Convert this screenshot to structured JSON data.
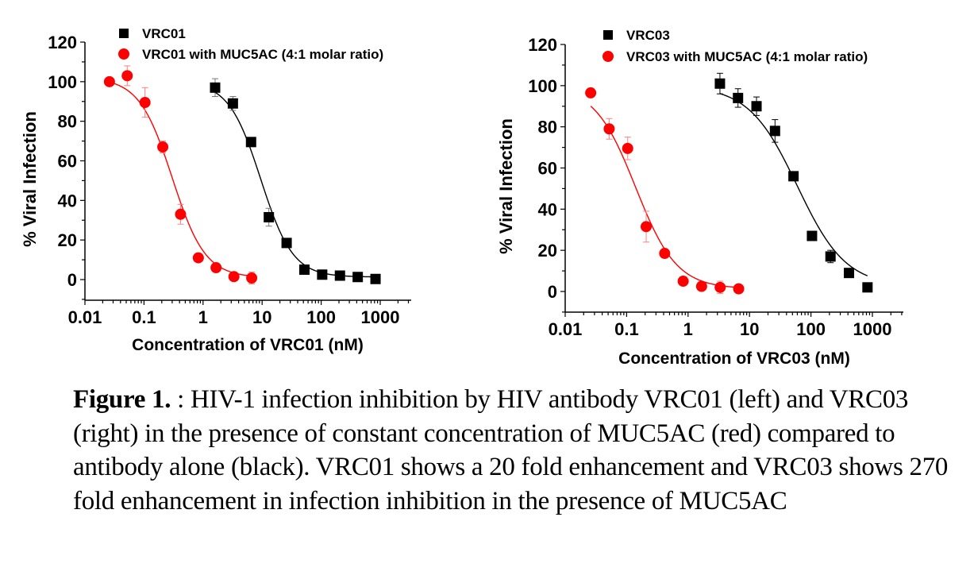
{
  "chart_data": [
    {
      "type": "scatter",
      "title": "",
      "xlabel": "Concentration of VRC01 (nM)",
      "ylabel": "% Viral Infection",
      "xscale": "log",
      "xlim": [
        0.01,
        3000
      ],
      "ylim": [
        -10,
        120
      ],
      "xticks": [
        "0.01",
        "0.1",
        "1",
        "10",
        "100",
        "1000"
      ],
      "yticks": [
        "0",
        "20",
        "40",
        "60",
        "80",
        "100",
        "120"
      ],
      "grid": false,
      "legend": "top-center",
      "series": [
        {
          "name": "VRC01",
          "color": "#000000",
          "marker": "square",
          "fit": "sigmoid",
          "x": [
            1.6,
            3.2,
            6.5,
            13,
            26,
            52,
            104,
            208,
            416,
            832
          ],
          "y": [
            97,
            89,
            69.5,
            31.5,
            18.5,
            5,
            2.5,
            2,
            1.3,
            0.3
          ],
          "err": [
            4.5,
            3.5,
            2,
            4.5,
            2,
            1,
            1,
            0.5,
            0.5,
            0.5
          ]
        },
        {
          "name": "VRC01 with MUC5AC (4:1 molar ratio)",
          "color": "#ff0000",
          "marker": "circle",
          "fit": "sigmoid",
          "x": [
            0.026,
            0.052,
            0.104,
            0.208,
            0.416,
            0.832,
            1.66,
            3.33,
            6.66
          ],
          "y": [
            100,
            103,
            89.5,
            67,
            33,
            11,
            6,
            1.5,
            0.8
          ],
          "err": [
            0,
            5,
            7.5,
            3,
            5,
            1,
            1,
            1,
            3
          ]
        }
      ]
    },
    {
      "type": "scatter",
      "title": "",
      "xlabel": "Concentration of VRC03 (nM)",
      "ylabel": "% Viral Infection",
      "xscale": "log",
      "xlim": [
        0.01,
        3000
      ],
      "ylim": [
        -10,
        120
      ],
      "xticks": [
        "0.01",
        "0.1",
        "1",
        "10",
        "100",
        "1000"
      ],
      "yticks": [
        "0",
        "20",
        "40",
        "60",
        "80",
        "100",
        "120"
      ],
      "grid": false,
      "legend": "top-center",
      "series": [
        {
          "name": "VRC03",
          "color": "#000000",
          "marker": "square",
          "fit": "sigmoid",
          "x": [
            3.3,
            6.5,
            13,
            26,
            52,
            104,
            208,
            416,
            832
          ],
          "y": [
            101,
            94,
            90,
            78,
            56,
            27,
            17,
            9,
            2
          ],
          "err": [
            5,
            4.5,
            4.5,
            5.5,
            2,
            1,
            3,
            1,
            0.5
          ]
        },
        {
          "name": "VRC03 with MUC5AC (4:1 molar ratio)",
          "color": "#ff0000",
          "marker": "circle",
          "fit": "sigmoid",
          "x": [
            0.026,
            0.052,
            0.104,
            0.208,
            0.416,
            0.832,
            1.66,
            3.33,
            6.66
          ],
          "y": [
            96.5,
            79,
            69.5,
            31.5,
            18.5,
            5,
            2.5,
            2,
            1.3
          ],
          "err": [
            0,
            5,
            5.5,
            7.5,
            1,
            1,
            1,
            3,
            0.5
          ]
        }
      ]
    }
  ],
  "caption": {
    "label": "Figure 1.",
    "text": " : HIV-1 infection inhibition by HIV antibody VRC01 (left) and VRC03 (right) in the presence of constant concentration of MUC5AC (red) compared to antibody alone (black). VRC01 shows a 20 fold enhancement and VRC03 shows 270 fold enhancement in infection inhibition in the presence of MUC5AC"
  }
}
